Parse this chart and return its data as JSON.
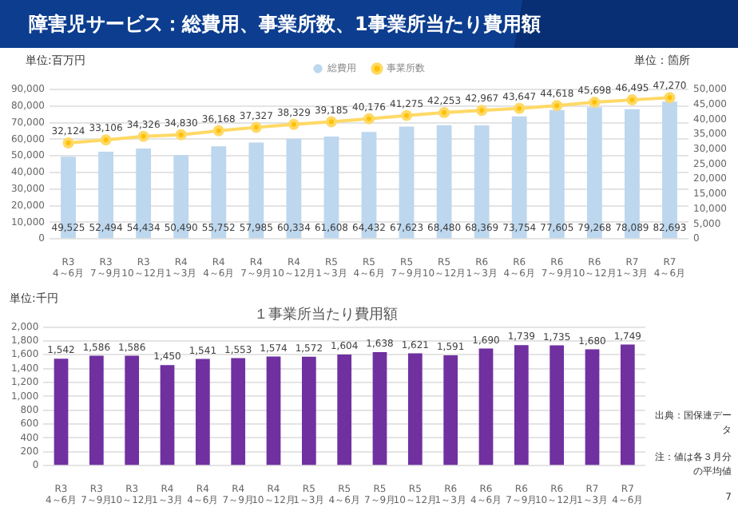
{
  "chart_data": [
    {
      "type": "bar",
      "title": "障害児サービス：総費用、事業所数、1事業所当たり費用額",
      "ylabel": "単位:百万円",
      "y2label": "単位：箇所",
      "categories": [
        "R3 4～6月",
        "R3 7～9月",
        "R3 10～12月",
        "R4 1～3月",
        "R4 4～6月",
        "R4 7～9月",
        "R4 10～12月",
        "R5 1～3月",
        "R5 4～6月",
        "R5 7～9月",
        "R5 10～12月",
        "R6 1～3月",
        "R6 4～6月",
        "R6 7～9月",
        "R6 10～12月",
        "R7 1～3月",
        "R7 4～6月"
      ],
      "series": [
        {
          "name": "総費用",
          "color": "#bdd7ee",
          "values": [
            49525,
            52494,
            54434,
            50490,
            55752,
            57985,
            60334,
            61608,
            64432,
            67623,
            68480,
            68369,
            73754,
            77605,
            79268,
            78089,
            82693
          ],
          "value_labels": [
            "49,525",
            "52,494",
            "54,434",
            "50,490",
            "55,752",
            "57,985",
            "60,334",
            "61,608",
            "64,432",
            "67,623",
            "68,480",
            "68,369",
            "73,754",
            "77,605",
            "79,268",
            "78,089",
            "82,693"
          ]
        },
        {
          "name": "事業所数",
          "type": "line",
          "axis": "y2",
          "color": "#ffd966",
          "values": [
            32124,
            33106,
            34326,
            34830,
            36168,
            37327,
            38329,
            39185,
            40176,
            41275,
            42253,
            42967,
            43647,
            44618,
            45698,
            46495,
            47270
          ],
          "value_labels": [
            "32,124",
            "33,106",
            "34,326",
            "34,830",
            "36,168",
            "37,327",
            "38,329",
            "39,185",
            "40,176",
            "41,275",
            "42,253",
            "42,967",
            "43,647",
            "44,618",
            "45,698",
            "46,495",
            "47,270"
          ]
        }
      ],
      "ylim": [
        0,
        90000
      ],
      "yticks": [
        0,
        {
          "value": 10000,
          "label": "10,000"
        },
        {
          "value": 20000,
          "label": "20,000"
        },
        {
          "value": 30000,
          "label": "30,000"
        },
        {
          "value": 40000,
          "label": "40,000"
        },
        {
          "value": 50000,
          "label": "50,000"
        },
        {
          "value": 60000,
          "label": "60,000"
        },
        {
          "value": 70000,
          "label": "70,000"
        },
        {
          "value": 80000,
          "label": "80,000"
        },
        {
          "value": 90000,
          "label": "90,000"
        }
      ],
      "y2lim": [
        0,
        50000
      ],
      "y2ticks": [
        0,
        {
          "value": 5000,
          "label": "5,000"
        },
        {
          "value": 10000,
          "label": "10,000"
        },
        {
          "value": 15000,
          "label": "15,000"
        },
        {
          "value": 20000,
          "label": "20,000"
        },
        {
          "value": 25000,
          "label": "25,000"
        },
        {
          "value": 30000,
          "label": "30,000"
        },
        {
          "value": 35000,
          "label": "35,000"
        },
        {
          "value": 40000,
          "label": "40,000"
        },
        {
          "value": 45000,
          "label": "45,000"
        },
        {
          "value": 50000,
          "label": "50,000"
        }
      ],
      "grid": "y",
      "legend": "top",
      "marker": "circle"
    },
    {
      "type": "bar",
      "title": "１事業所当たり費用額",
      "ylabel": "単位:千円",
      "categories": [
        "R3 4～6月",
        "R3 7～9月",
        "R3 10～12月",
        "R4 1～3月",
        "R4 4～6月",
        "R4 7～9月",
        "R4 10～12月",
        "R5 1～3月",
        "R5 4～6月",
        "R5 7～9月",
        "R5 10～12月",
        "R6 1～3月",
        "R6 4～6月",
        "R6 7～9月",
        "R6 10～12月",
        "R7 1～3月",
        "R7 4～6月"
      ],
      "series": [
        {
          "color": "#7030a0",
          "values": [
            1542,
            1586,
            1586,
            1450,
            1541,
            1553,
            1574,
            1572,
            1604,
            1638,
            1621,
            1591,
            1690,
            1739,
            1735,
            1680,
            1749
          ],
          "value_labels": [
            "1,542",
            "1,586",
            "1,586",
            "1,450",
            "1,541",
            "1,553",
            "1,574",
            "1,572",
            "1,604",
            "1,638",
            "1,621",
            "1,591",
            "1,690",
            "1,739",
            "1,735",
            "1,680",
            "1,749"
          ]
        }
      ],
      "ylim": [
        0,
        2000
      ],
      "yticks": [
        0,
        200,
        400,
        600,
        800,
        {
          "value": 1000,
          "label": "1,000"
        },
        {
          "value": 1200,
          "label": "1,200"
        },
        {
          "value": 1400,
          "label": "1,400"
        },
        {
          "value": 1600,
          "label": "1,600"
        },
        {
          "value": 1800,
          "label": "1,800"
        },
        {
          "value": 2000,
          "label": "2,000"
        }
      ],
      "grid": "y",
      "annotations": [
        "出典：国保連データ",
        "注：値は各３月分の平均値",
        "7"
      ]
    }
  ]
}
